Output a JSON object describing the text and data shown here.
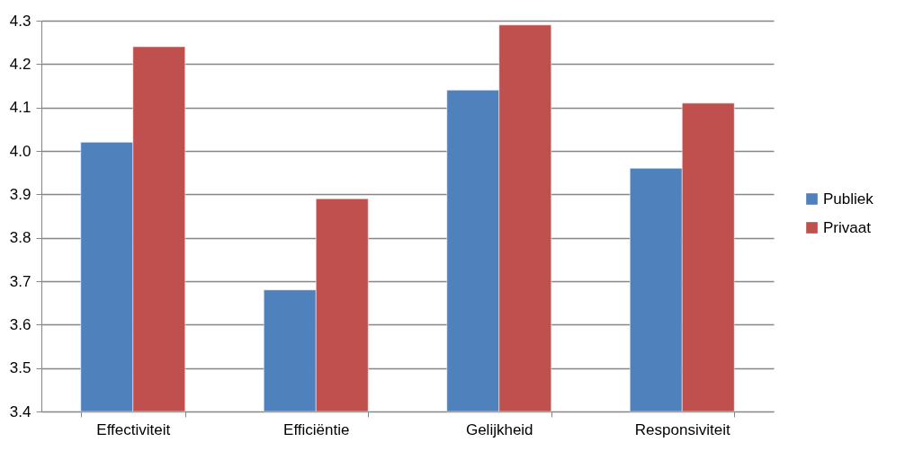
{
  "chart_data": {
    "type": "bar",
    "categories": [
      "Effectiviteit",
      "Efficiëntie",
      "Gelijkheid",
      "Responsiviteit"
    ],
    "series": [
      {
        "name": "Publiek",
        "color": "#4f81bd",
        "values": [
          4.02,
          3.68,
          4.14,
          3.96
        ]
      },
      {
        "name": "Privaat",
        "color": "#c0504d",
        "values": [
          4.24,
          3.89,
          4.29,
          4.11
        ]
      }
    ],
    "ylim": [
      3.4,
      4.3
    ],
    "yticks": [
      3.4,
      3.5,
      3.6,
      3.7,
      3.8,
      3.9,
      {
        "value": 4.0,
        "label": "4.0"
      },
      4.1,
      4.2,
      4.3
    ],
    "grid": "y",
    "legend": "right"
  }
}
